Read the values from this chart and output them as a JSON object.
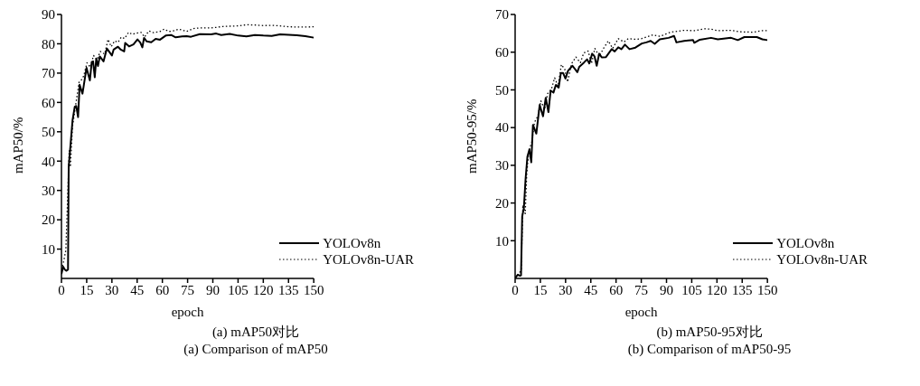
{
  "chart_data": [
    {
      "type": "line",
      "title": "(a) mAP50对比",
      "subtitle": "(a) Comparison of mAP50",
      "xlabel": "epoch",
      "ylabel": "mAP50/%",
      "xlim": [
        0,
        150
      ],
      "ylim": [
        0,
        90
      ],
      "xticks": [
        0,
        15,
        30,
        45,
        60,
        75,
        90,
        105,
        120,
        135,
        150
      ],
      "yticks": [
        10,
        20,
        30,
        40,
        50,
        60,
        70,
        80,
        90
      ],
      "grid": false,
      "legend": "bottom right",
      "marker": "none",
      "series": [
        {
          "name": "YOLOv8n",
          "color": "#000000",
          "line_style": "solid",
          "x": [
            0,
            1,
            2,
            3,
            3.9,
            4.3,
            6.6,
            7.9,
            8.8,
            9.9,
            10.8,
            12.5,
            14.9,
            16.9,
            18,
            18.8,
            19.8,
            20.7,
            21.7,
            22.8,
            25,
            27,
            30,
            31,
            33.6,
            35.3,
            37.3,
            37.9,
            40.2,
            42.8,
            45.2,
            46.8,
            48.1,
            49.1,
            50.7,
            53.4,
            56,
            58.6,
            62,
            65.2,
            67.9,
            71.8,
            74.4,
            77,
            82.3,
            89,
            92,
            95,
            100,
            105,
            110,
            115,
            120,
            125,
            130,
            135,
            140,
            145,
            150
          ],
          "values": [
            1.5,
            4,
            3,
            2.6,
            3,
            38,
            54,
            58.5,
            58.8,
            55,
            66,
            63,
            71.8,
            67.5,
            73.8,
            74,
            68.6,
            75,
            72.4,
            75.7,
            74,
            78.4,
            76,
            78,
            79,
            78,
            77.4,
            80.3,
            79.1,
            79.8,
            81.5,
            80.5,
            78.8,
            82,
            80.8,
            80.5,
            81.7,
            81.4,
            82.8,
            83,
            82.2,
            82.5,
            82.6,
            82.4,
            83.3,
            83.2,
            83.5,
            83,
            83.4,
            82.8,
            82.5,
            83,
            82.8,
            82.7,
            83.2,
            83.1,
            82.9,
            82.6,
            82.1
          ]
        },
        {
          "name": "YOLOv8n-UAR",
          "color": "#000000",
          "line_style": "dotted",
          "x": [
            0,
            1.3,
            2.6,
            3.6,
            4.6,
            5.3,
            6.6,
            7.9,
            9.2,
            10.5,
            11.9,
            13.2,
            15.2,
            17.1,
            19.1,
            21.1,
            23.1,
            25.7,
            27.7,
            29.6,
            31.6,
            33.6,
            35.6,
            37.5,
            39.9,
            42.2,
            44.1,
            47.4,
            49.4,
            52,
            54.7,
            58.6,
            61,
            63.9,
            66.5,
            69.8,
            74.4,
            78.4,
            82.3,
            89,
            92,
            96,
            100,
            105,
            110,
            115,
            120,
            125,
            130,
            135,
            140,
            145,
            150
          ],
          "values": [
            3,
            5.8,
            9.6,
            26,
            43.6,
            38,
            52,
            57,
            62,
            67,
            67.7,
            69,
            73.5,
            72,
            76,
            74.5,
            77.4,
            76.5,
            81.5,
            79,
            81,
            80.5,
            82.3,
            81.8,
            83.9,
            83.2,
            83.6,
            83.9,
            82.3,
            84.4,
            83.8,
            84.2,
            85,
            84.2,
            84.4,
            85,
            84.2,
            85.2,
            85.4,
            85.4,
            85.6,
            85.9,
            86,
            86.1,
            86.5,
            86.4,
            86.2,
            86.3,
            86.1,
            85.8,
            85.7,
            85.7,
            85.8
          ]
        }
      ]
    },
    {
      "type": "line",
      "title": "(b) mAP50-95对比",
      "subtitle": "(b) Comparison of mAP50-95",
      "xlabel": "epoch",
      "ylabel": "mAP50-95/%",
      "xlim": [
        0,
        150
      ],
      "ylim": [
        0,
        70
      ],
      "xticks": [
        0,
        15,
        30,
        45,
        60,
        75,
        90,
        105,
        120,
        135,
        150
      ],
      "yticks": [
        10,
        20,
        30,
        40,
        50,
        60,
        70
      ],
      "grid": false,
      "legend": "bottom right",
      "marker": "none",
      "series": [
        {
          "name": "YOLOv8n",
          "color": "#000000",
          "line_style": "solid",
          "x": [
            0,
            1.6,
            2.9,
            3.5,
            4.2,
            5.2,
            6.2,
            7.3,
            8.5,
            9.6,
            10.6,
            12.6,
            14.6,
            16.6,
            18.2,
            19.8,
            21.1,
            22.8,
            24.2,
            25.9,
            27.2,
            28.5,
            29.9,
            31.5,
            34.1,
            37,
            38.1,
            40.8,
            42.8,
            44.1,
            45.8,
            47.2,
            48.5,
            50,
            51.5,
            54,
            57.4,
            59.2,
            61.3,
            63.2,
            65.3,
            68,
            71.5,
            75.3,
            78,
            80.6,
            83,
            86,
            91.2,
            94.5,
            95.9,
            100.5,
            105.8,
            106.5,
            109.8,
            116.5,
            120.5,
            128.4,
            132.4,
            136.3,
            143.7,
            147,
            150
          ],
          "values": [
            0.1,
            1,
            0.7,
            0.8,
            16.4,
            18.7,
            26.3,
            32.3,
            34.2,
            30.8,
            40.7,
            38.4,
            46,
            43,
            47.9,
            44.1,
            49.8,
            49.3,
            51.3,
            50.6,
            54.5,
            54.5,
            53,
            55.1,
            56.4,
            54.7,
            56.1,
            57.2,
            58.1,
            57,
            59.6,
            58.9,
            56.4,
            59.6,
            58.6,
            58.7,
            60.8,
            60.2,
            61.3,
            60.8,
            62,
            60.8,
            61.2,
            62.3,
            62.6,
            63,
            62.2,
            63.4,
            63.8,
            64.3,
            62.6,
            63,
            63.2,
            62.5,
            63.3,
            63.8,
            63.4,
            63.8,
            63.2,
            64,
            64,
            63.4,
            63.2
          ]
        },
        {
          "name": "YOLOv8n-UAR",
          "color": "#000000",
          "line_style": "dotted",
          "x": [
            0,
            1,
            2.3,
            3.6,
            4.6,
            6,
            6.9,
            8.2,
            9.9,
            11.5,
            13.5,
            15.3,
            17.5,
            19.3,
            21.5,
            23.5,
            25.5,
            27.5,
            29.5,
            31.2,
            33.5,
            36.1,
            38.8,
            40.8,
            43.4,
            45.4,
            47.4,
            50,
            52.7,
            55.4,
            58,
            61.3,
            64.7,
            67.3,
            72,
            75.3,
            81.9,
            86,
            92.5,
            100.5,
            107,
            112.5,
            116.5,
            120.5,
            128.4,
            133.7,
            141.6,
            147,
            150
          ],
          "values": [
            0.2,
            0.3,
            1.2,
            2.4,
            19.5,
            17.2,
            27.8,
            33.9,
            36.1,
            41.4,
            43,
            47.1,
            44.8,
            49,
            50.1,
            53.2,
            51,
            56.7,
            55.5,
            52.1,
            56.9,
            58.7,
            57.2,
            59.8,
            60.3,
            57,
            61,
            58.9,
            61.1,
            63,
            61,
            63.6,
            62.7,
            63.6,
            63.4,
            63.6,
            64.6,
            64.2,
            65.3,
            65.8,
            65.7,
            66.2,
            66.1,
            65.7,
            65.8,
            65.4,
            65.3,
            65.7,
            65.7
          ]
        }
      ]
    }
  ]
}
